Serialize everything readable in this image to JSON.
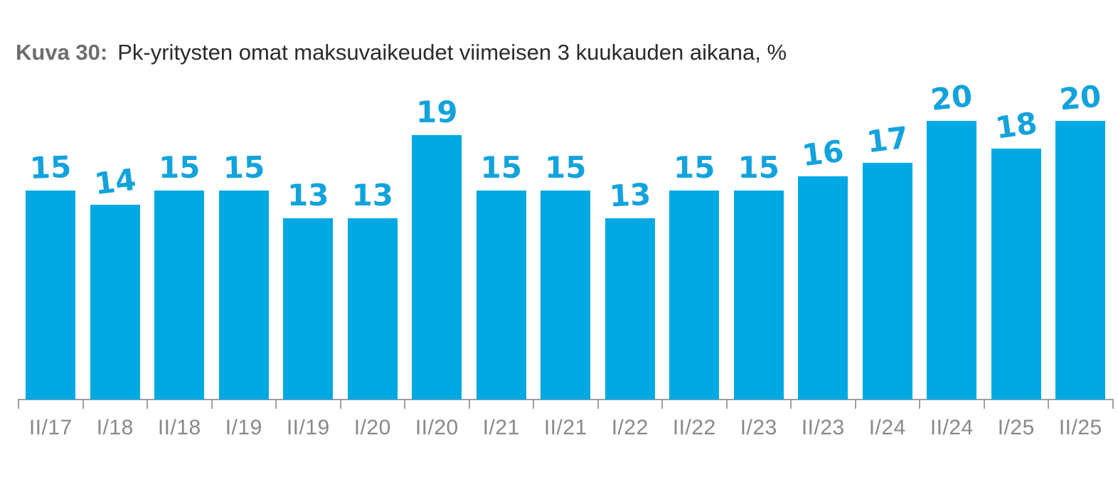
{
  "title": {
    "prefix": "Kuva 30:",
    "text": "Pk-yritysten omat maksuvaikeudet viimeisen 3 kuukauden aikana, %"
  },
  "chart_data": {
    "type": "bar",
    "figure_label": "Kuva 30:",
    "title": "Pk-yritysten omat maksuvaikeudet viimeisen 3 kuukauden aikana, %",
    "categories": [
      "II/17",
      "I/18",
      "II/18",
      "I/19",
      "II/19",
      "I/20",
      "II/20",
      "I/21",
      "II/21",
      "I/22",
      "II/22",
      "I/23",
      "II/23",
      "I/24",
      "II/24",
      "I/25",
      "II/25"
    ],
    "values": [
      15,
      14,
      15,
      15,
      13,
      13,
      19,
      15,
      15,
      13,
      15,
      15,
      16,
      17,
      20,
      18,
      20
    ],
    "xlabel": "",
    "ylabel": "",
    "ylim": [
      0,
      22
    ],
    "grid": false,
    "legend_position": "none",
    "data_labels": true,
    "colors": {
      "bar": "#00a9e2",
      "value_label": "#12a3dd",
      "axis": "#9da0a3",
      "tick_label": "#87898c",
      "title_prefix": "#6d6e71",
      "title_text": "#2b2b2b"
    }
  }
}
